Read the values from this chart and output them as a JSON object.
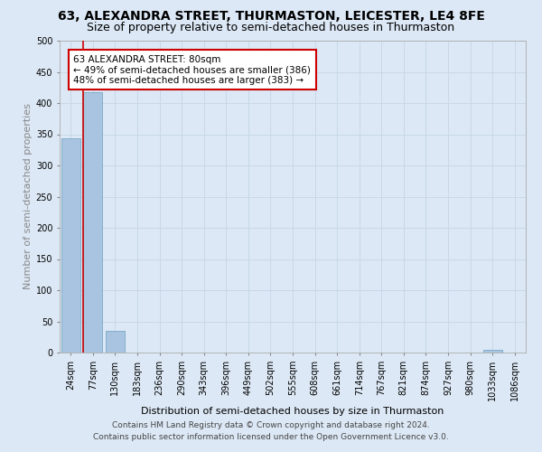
{
  "title": "63, ALEXANDRA STREET, THURMASTON, LEICESTER, LE4 8FE",
  "subtitle": "Size of property relative to semi-detached houses in Thurmaston",
  "xlabel": "Distribution of semi-detached houses by size in Thurmaston",
  "ylabel": "Number of semi-detached properties",
  "categories": [
    "24sqm",
    "77sqm",
    "130sqm",
    "183sqm",
    "236sqm",
    "290sqm",
    "343sqm",
    "396sqm",
    "449sqm",
    "502sqm",
    "555sqm",
    "608sqm",
    "661sqm",
    "714sqm",
    "767sqm",
    "821sqm",
    "874sqm",
    "927sqm",
    "980sqm",
    "1033sqm",
    "1086sqm"
  ],
  "values": [
    344,
    418,
    35,
    0,
    0,
    0,
    0,
    0,
    0,
    0,
    0,
    0,
    0,
    0,
    0,
    0,
    0,
    0,
    0,
    5,
    0
  ],
  "bar_color": "#a8c4e0",
  "bar_edge_color": "#6a9fc0",
  "highlight_line_color": "#cc0000",
  "annotation_text": "63 ALEXANDRA STREET: 80sqm\n← 49% of semi-detached houses are smaller (386)\n48% of semi-detached houses are larger (383) →",
  "annotation_box_color": "#ffffff",
  "annotation_box_edge_color": "#cc0000",
  "ylim": [
    0,
    500
  ],
  "yticks": [
    0,
    50,
    100,
    150,
    200,
    250,
    300,
    350,
    400,
    450,
    500
  ],
  "grid_color": "#c8d8e8",
  "background_color": "#dce8f5",
  "footer_text": "Contains HM Land Registry data © Crown copyright and database right 2024.\nContains public sector information licensed under the Open Government Licence v3.0.",
  "title_fontsize": 10,
  "subtitle_fontsize": 9,
  "axis_label_fontsize": 8,
  "tick_fontsize": 7,
  "footer_fontsize": 6.5,
  "ylabel_fontsize": 8
}
